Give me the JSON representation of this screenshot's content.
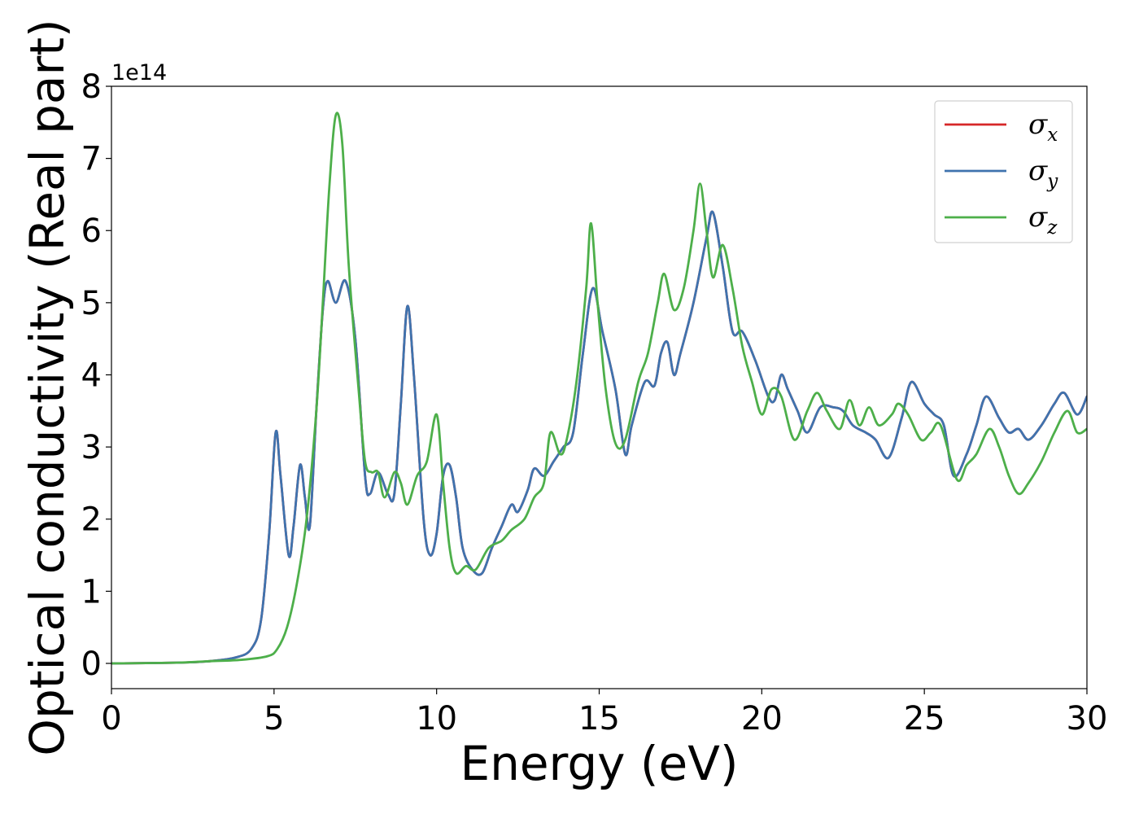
{
  "chart_data": {
    "type": "line",
    "title": "",
    "xlabel": "Energy (eV)",
    "ylabel": "Optical conductivity (Real part)",
    "y_offset_label": "1e14",
    "xlim": [
      0,
      30
    ],
    "ylim": [
      -0.35,
      8
    ],
    "y_scale_factor": 100000000000000.0,
    "x_ticks": [
      0,
      5,
      10,
      15,
      20,
      25,
      30
    ],
    "x_tick_labels": [
      "0",
      "5",
      "10",
      "15",
      "20",
      "25",
      "30"
    ],
    "y_ticks": [
      0,
      1,
      2,
      3,
      4,
      5,
      6,
      7,
      8
    ],
    "y_tick_labels": [
      "0",
      "1",
      "2",
      "3",
      "4",
      "5",
      "6",
      "7",
      "8"
    ],
    "grid": false,
    "legend_position": "top-right",
    "series": [
      {
        "name": "σx",
        "symbol": "σ",
        "subscript": "x",
        "color": "#d62728",
        "points": [
          [
            0,
            0
          ],
          [
            2,
            0.01
          ],
          [
            3,
            0.03
          ],
          [
            3.8,
            0.08
          ],
          [
            4.3,
            0.2
          ],
          [
            4.6,
            0.6
          ],
          [
            4.85,
            1.8
          ],
          [
            5.05,
            3.2
          ],
          [
            5.2,
            2.6
          ],
          [
            5.45,
            1.5
          ],
          [
            5.6,
            1.9
          ],
          [
            5.8,
            2.75
          ],
          [
            5.95,
            2.3
          ],
          [
            6.1,
            1.9
          ],
          [
            6.3,
            3.5
          ],
          [
            6.5,
            4.9
          ],
          [
            6.65,
            5.3
          ],
          [
            6.9,
            5.0
          ],
          [
            7.2,
            5.3
          ],
          [
            7.5,
            4.5
          ],
          [
            7.8,
            2.6
          ],
          [
            7.95,
            2.35
          ],
          [
            8.2,
            2.65
          ],
          [
            8.5,
            2.35
          ],
          [
            8.7,
            2.35
          ],
          [
            8.9,
            3.6
          ],
          [
            9.1,
            4.95
          ],
          [
            9.3,
            4.0
          ],
          [
            9.6,
            2.0
          ],
          [
            9.8,
            1.5
          ],
          [
            10.0,
            1.8
          ],
          [
            10.2,
            2.6
          ],
          [
            10.4,
            2.75
          ],
          [
            10.6,
            2.3
          ],
          [
            10.8,
            1.6
          ],
          [
            11.1,
            1.3
          ],
          [
            11.4,
            1.25
          ],
          [
            11.7,
            1.6
          ],
          [
            12.0,
            1.9
          ],
          [
            12.3,
            2.2
          ],
          [
            12.5,
            2.1
          ],
          [
            12.8,
            2.4
          ],
          [
            13.0,
            2.7
          ],
          [
            13.3,
            2.6
          ],
          [
            13.6,
            2.8
          ],
          [
            13.9,
            3.0
          ],
          [
            14.2,
            3.2
          ],
          [
            14.5,
            4.3
          ],
          [
            14.8,
            5.2
          ],
          [
            15.1,
            4.6
          ],
          [
            15.5,
            3.8
          ],
          [
            15.8,
            2.9
          ],
          [
            16.0,
            3.3
          ],
          [
            16.4,
            3.9
          ],
          [
            16.7,
            3.85
          ],
          [
            16.9,
            4.3
          ],
          [
            17.1,
            4.45
          ],
          [
            17.3,
            4.0
          ],
          [
            17.5,
            4.3
          ],
          [
            17.9,
            5.0
          ],
          [
            18.3,
            5.9
          ],
          [
            18.5,
            6.25
          ],
          [
            18.8,
            5.5
          ],
          [
            19.1,
            4.6
          ],
          [
            19.4,
            4.6
          ],
          [
            19.8,
            4.2
          ],
          [
            20.2,
            3.7
          ],
          [
            20.4,
            3.65
          ],
          [
            20.6,
            4.0
          ],
          [
            20.8,
            3.8
          ],
          [
            21.1,
            3.5
          ],
          [
            21.4,
            3.2
          ],
          [
            21.8,
            3.55
          ],
          [
            22.2,
            3.55
          ],
          [
            22.5,
            3.5
          ],
          [
            22.8,
            3.3
          ],
          [
            23.2,
            3.2
          ],
          [
            23.5,
            3.1
          ],
          [
            23.9,
            2.85
          ],
          [
            24.3,
            3.4
          ],
          [
            24.6,
            3.9
          ],
          [
            25.0,
            3.6
          ],
          [
            25.3,
            3.45
          ],
          [
            25.6,
            3.3
          ],
          [
            25.9,
            2.6
          ],
          [
            26.3,
            2.9
          ],
          [
            26.6,
            3.3
          ],
          [
            26.9,
            3.7
          ],
          [
            27.3,
            3.4
          ],
          [
            27.6,
            3.2
          ],
          [
            27.9,
            3.25
          ],
          [
            28.2,
            3.1
          ],
          [
            28.6,
            3.3
          ],
          [
            29.0,
            3.6
          ],
          [
            29.3,
            3.75
          ],
          [
            29.7,
            3.45
          ],
          [
            30.0,
            3.7
          ]
        ]
      },
      {
        "name": "σy",
        "symbol": "σ",
        "subscript": "y",
        "color": "#3f73ae",
        "points": [
          [
            0,
            0
          ],
          [
            2,
            0.01
          ],
          [
            3,
            0.03
          ],
          [
            3.8,
            0.08
          ],
          [
            4.3,
            0.2
          ],
          [
            4.6,
            0.6
          ],
          [
            4.85,
            1.8
          ],
          [
            5.05,
            3.2
          ],
          [
            5.2,
            2.6
          ],
          [
            5.45,
            1.5
          ],
          [
            5.6,
            1.9
          ],
          [
            5.8,
            2.75
          ],
          [
            5.95,
            2.3
          ],
          [
            6.1,
            1.9
          ],
          [
            6.3,
            3.5
          ],
          [
            6.5,
            4.9
          ],
          [
            6.65,
            5.3
          ],
          [
            6.9,
            5.0
          ],
          [
            7.2,
            5.3
          ],
          [
            7.5,
            4.5
          ],
          [
            7.8,
            2.6
          ],
          [
            7.95,
            2.35
          ],
          [
            8.2,
            2.65
          ],
          [
            8.5,
            2.35
          ],
          [
            8.7,
            2.35
          ],
          [
            8.9,
            3.6
          ],
          [
            9.1,
            4.95
          ],
          [
            9.3,
            4.0
          ],
          [
            9.6,
            2.0
          ],
          [
            9.8,
            1.5
          ],
          [
            10.0,
            1.8
          ],
          [
            10.2,
            2.6
          ],
          [
            10.4,
            2.75
          ],
          [
            10.6,
            2.3
          ],
          [
            10.8,
            1.6
          ],
          [
            11.1,
            1.3
          ],
          [
            11.4,
            1.25
          ],
          [
            11.7,
            1.6
          ],
          [
            12.0,
            1.9
          ],
          [
            12.3,
            2.2
          ],
          [
            12.5,
            2.1
          ],
          [
            12.8,
            2.4
          ],
          [
            13.0,
            2.7
          ],
          [
            13.3,
            2.6
          ],
          [
            13.6,
            2.8
          ],
          [
            13.9,
            3.0
          ],
          [
            14.2,
            3.2
          ],
          [
            14.5,
            4.3
          ],
          [
            14.8,
            5.2
          ],
          [
            15.1,
            4.6
          ],
          [
            15.5,
            3.8
          ],
          [
            15.8,
            2.9
          ],
          [
            16.0,
            3.3
          ],
          [
            16.4,
            3.9
          ],
          [
            16.7,
            3.85
          ],
          [
            16.9,
            4.3
          ],
          [
            17.1,
            4.45
          ],
          [
            17.3,
            4.0
          ],
          [
            17.5,
            4.3
          ],
          [
            17.9,
            5.0
          ],
          [
            18.3,
            5.9
          ],
          [
            18.5,
            6.25
          ],
          [
            18.8,
            5.5
          ],
          [
            19.1,
            4.6
          ],
          [
            19.4,
            4.6
          ],
          [
            19.8,
            4.2
          ],
          [
            20.2,
            3.7
          ],
          [
            20.4,
            3.65
          ],
          [
            20.6,
            4.0
          ],
          [
            20.8,
            3.8
          ],
          [
            21.1,
            3.5
          ],
          [
            21.4,
            3.2
          ],
          [
            21.8,
            3.55
          ],
          [
            22.2,
            3.55
          ],
          [
            22.5,
            3.5
          ],
          [
            22.8,
            3.3
          ],
          [
            23.2,
            3.2
          ],
          [
            23.5,
            3.1
          ],
          [
            23.9,
            2.85
          ],
          [
            24.3,
            3.4
          ],
          [
            24.6,
            3.9
          ],
          [
            25.0,
            3.6
          ],
          [
            25.3,
            3.45
          ],
          [
            25.6,
            3.3
          ],
          [
            25.9,
            2.6
          ],
          [
            26.3,
            2.9
          ],
          [
            26.6,
            3.3
          ],
          [
            26.9,
            3.7
          ],
          [
            27.3,
            3.4
          ],
          [
            27.6,
            3.2
          ],
          [
            27.9,
            3.25
          ],
          [
            28.2,
            3.1
          ],
          [
            28.6,
            3.3
          ],
          [
            29.0,
            3.6
          ],
          [
            29.3,
            3.75
          ],
          [
            29.7,
            3.45
          ],
          [
            30.0,
            3.7
          ]
        ]
      },
      {
        "name": "σz",
        "symbol": "σ",
        "subscript": "z",
        "color": "#4daf4a",
        "points": [
          [
            0,
            0
          ],
          [
            2,
            0.01
          ],
          [
            3,
            0.03
          ],
          [
            4,
            0.05
          ],
          [
            4.8,
            0.1
          ],
          [
            5.1,
            0.2
          ],
          [
            5.4,
            0.5
          ],
          [
            5.7,
            1.1
          ],
          [
            6.0,
            2.0
          ],
          [
            6.3,
            3.5
          ],
          [
            6.5,
            5.0
          ],
          [
            6.7,
            6.6
          ],
          [
            6.9,
            7.6
          ],
          [
            7.1,
            7.2
          ],
          [
            7.3,
            5.5
          ],
          [
            7.6,
            3.8
          ],
          [
            7.8,
            2.8
          ],
          [
            8.0,
            2.65
          ],
          [
            8.2,
            2.65
          ],
          [
            8.4,
            2.3
          ],
          [
            8.7,
            2.65
          ],
          [
            8.9,
            2.5
          ],
          [
            9.1,
            2.2
          ],
          [
            9.4,
            2.6
          ],
          [
            9.7,
            2.8
          ],
          [
            10.0,
            3.45
          ],
          [
            10.2,
            2.5
          ],
          [
            10.4,
            1.6
          ],
          [
            10.6,
            1.25
          ],
          [
            10.9,
            1.35
          ],
          [
            11.2,
            1.3
          ],
          [
            11.6,
            1.6
          ],
          [
            12.0,
            1.7
          ],
          [
            12.3,
            1.85
          ],
          [
            12.7,
            2.0
          ],
          [
            13.0,
            2.3
          ],
          [
            13.3,
            2.5
          ],
          [
            13.5,
            3.2
          ],
          [
            13.8,
            2.9
          ],
          [
            14.0,
            3.1
          ],
          [
            14.3,
            3.9
          ],
          [
            14.6,
            5.2
          ],
          [
            14.75,
            6.1
          ],
          [
            14.95,
            5.0
          ],
          [
            15.2,
            3.8
          ],
          [
            15.5,
            3.05
          ],
          [
            15.8,
            3.1
          ],
          [
            16.2,
            3.9
          ],
          [
            16.5,
            4.3
          ],
          [
            16.8,
            5.0
          ],
          [
            17.0,
            5.4
          ],
          [
            17.3,
            4.9
          ],
          [
            17.6,
            5.2
          ],
          [
            17.9,
            6.0
          ],
          [
            18.1,
            6.65
          ],
          [
            18.3,
            6.0
          ],
          [
            18.5,
            5.35
          ],
          [
            18.8,
            5.8
          ],
          [
            19.1,
            5.2
          ],
          [
            19.4,
            4.4
          ],
          [
            19.7,
            3.9
          ],
          [
            20.0,
            3.45
          ],
          [
            20.3,
            3.8
          ],
          [
            20.6,
            3.7
          ],
          [
            21.0,
            3.1
          ],
          [
            21.4,
            3.5
          ],
          [
            21.7,
            3.75
          ],
          [
            22.0,
            3.5
          ],
          [
            22.4,
            3.25
          ],
          [
            22.7,
            3.65
          ],
          [
            23.0,
            3.3
          ],
          [
            23.3,
            3.55
          ],
          [
            23.6,
            3.3
          ],
          [
            24.0,
            3.45
          ],
          [
            24.2,
            3.6
          ],
          [
            24.5,
            3.45
          ],
          [
            24.9,
            3.1
          ],
          [
            25.2,
            3.2
          ],
          [
            25.5,
            3.3
          ],
          [
            26.0,
            2.55
          ],
          [
            26.3,
            2.75
          ],
          [
            26.6,
            2.9
          ],
          [
            27.0,
            3.25
          ],
          [
            27.3,
            3.0
          ],
          [
            27.6,
            2.6
          ],
          [
            27.9,
            2.35
          ],
          [
            28.2,
            2.5
          ],
          [
            28.6,
            2.8
          ],
          [
            29.0,
            3.2
          ],
          [
            29.4,
            3.5
          ],
          [
            29.7,
            3.2
          ],
          [
            30.0,
            3.25
          ]
        ]
      }
    ]
  }
}
